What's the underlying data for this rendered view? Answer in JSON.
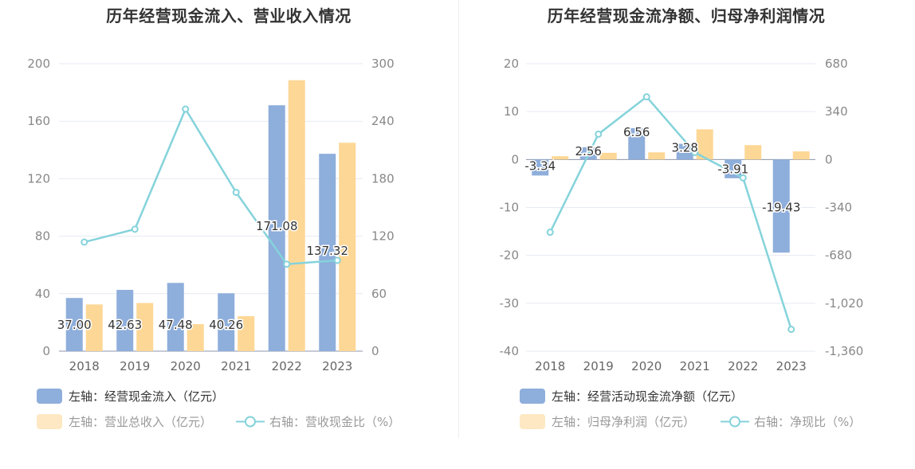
{
  "chart_data": [
    {
      "type": "bar",
      "title": "历年经营现金流入、营业收入情况",
      "categories": [
        "2018",
        "2019",
        "2020",
        "2021",
        "2022",
        "2023"
      ],
      "left_axis": {
        "min": 0,
        "max": 200,
        "ticks": [
          "0",
          "40",
          "80",
          "120",
          "160",
          "200"
        ]
      },
      "right_axis": {
        "min": 0,
        "max": 300,
        "ticks": [
          "0",
          "60",
          "120",
          "180",
          "240",
          "300"
        ]
      },
      "series": [
        {
          "name": "左轴：经营现金流入（亿元）",
          "axis": "left",
          "kind": "bar",
          "color": "#8eaedb",
          "values": [
            37.0,
            42.63,
            47.48,
            40.26,
            171.08,
            137.32
          ],
          "labels": [
            "37.00",
            "42.63",
            "47.48",
            "40.26",
            "171.08",
            "137.32"
          ]
        },
        {
          "name": "左轴：营业总收入（亿元）",
          "axis": "left",
          "kind": "bar",
          "color": "#fdd795",
          "values": [
            32.5,
            33.5,
            18.8,
            24.3,
            188.5,
            145.0
          ]
        },
        {
          "name": "右轴：营收现金比（%）",
          "axis": "right",
          "kind": "line",
          "color": "#85d3db",
          "values": [
            113.8,
            127.3,
            252.6,
            165.7,
            90.8,
            94.7
          ]
        }
      ],
      "grid": true
    },
    {
      "type": "bar",
      "title": "历年经营现金流净额、归母净利润情况",
      "categories": [
        "2018",
        "2019",
        "2020",
        "2021",
        "2022",
        "2023"
      ],
      "left_axis": {
        "min": -40,
        "max": 20,
        "ticks": [
          "-40",
          "-30",
          "-20",
          "-10",
          "0",
          "10",
          "20"
        ]
      },
      "right_axis": {
        "min": -1360,
        "max": 680,
        "ticks": [
          "-1,360",
          "-1,020",
          "-680",
          "-340",
          "0",
          "340",
          "680"
        ]
      },
      "series": [
        {
          "name": "左轴：经营活动现金流净额（亿元）",
          "axis": "left",
          "kind": "bar",
          "color": "#8eaedb",
          "values": [
            -3.34,
            2.56,
            6.56,
            3.28,
            -3.91,
            -19.43
          ],
          "labels": [
            "-3.34",
            "2.56",
            "6.56",
            "3.28",
            "-3.91",
            "-19.43"
          ]
        },
        {
          "name": "左轴：归母净利润（亿元）",
          "axis": "left",
          "kind": "bar",
          "color": "#fdd795",
          "values": [
            0.7,
            1.4,
            1.5,
            6.3,
            3.0,
            1.7
          ]
        },
        {
          "name": "右轴：净现比（%）",
          "axis": "right",
          "kind": "line",
          "color": "#85d3db",
          "values": [
            -516,
            180,
            445,
            50,
            -130,
            -1205
          ]
        }
      ],
      "grid": true
    }
  ]
}
